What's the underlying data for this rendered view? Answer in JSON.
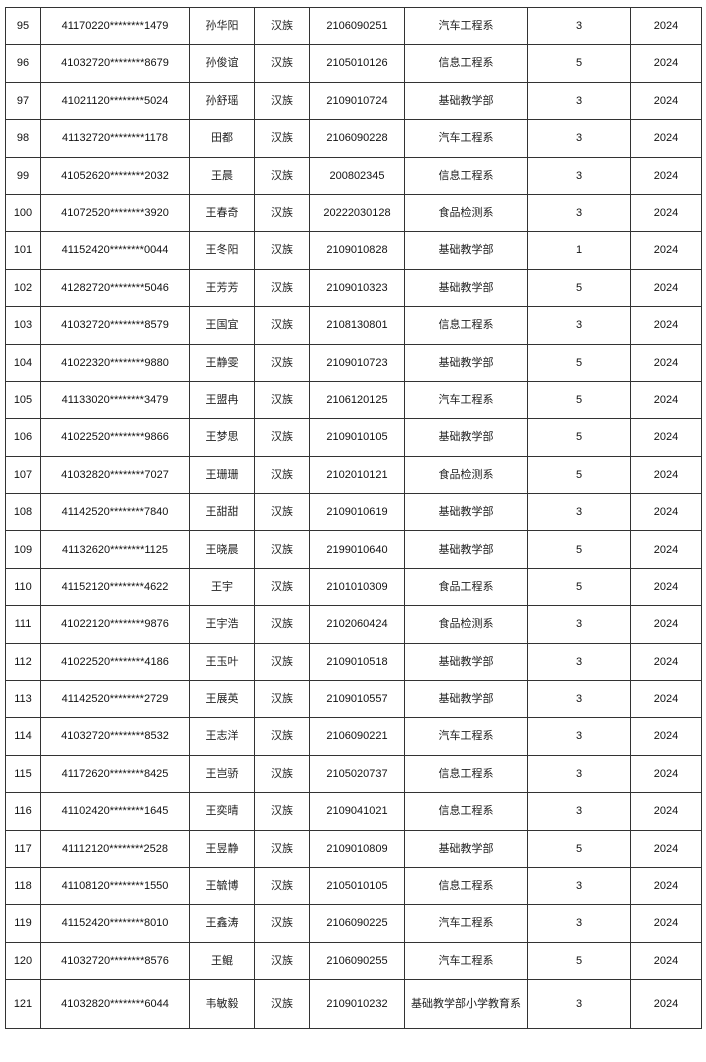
{
  "rows": [
    {
      "no": "95",
      "id": "41170220********1479",
      "name": "孙华阳",
      "ethnicity": "汉族",
      "student_no": "2106090251",
      "dept": "汽车工程系",
      "value": "3",
      "year": "2024"
    },
    {
      "no": "96",
      "id": "41032720********8679",
      "name": "孙俊谊",
      "ethnicity": "汉族",
      "student_no": "2105010126",
      "dept": "信息工程系",
      "value": "5",
      "year": "2024"
    },
    {
      "no": "97",
      "id": "41021120********5024",
      "name": "孙舒瑶",
      "ethnicity": "汉族",
      "student_no": "2109010724",
      "dept": "基础教学部",
      "value": "3",
      "year": "2024"
    },
    {
      "no": "98",
      "id": "41132720********1178",
      "name": "田都",
      "ethnicity": "汉族",
      "student_no": "2106090228",
      "dept": "汽车工程系",
      "value": "3",
      "year": "2024"
    },
    {
      "no": "99",
      "id": "41052620********2032",
      "name": "王晨",
      "ethnicity": "汉族",
      "student_no": "200802345",
      "dept": "信息工程系",
      "value": "3",
      "year": "2024"
    },
    {
      "no": "100",
      "id": "41072520********3920",
      "name": "王春奇",
      "ethnicity": "汉族",
      "student_no": "20222030128",
      "dept": "食品检测系",
      "value": "3",
      "year": "2024"
    },
    {
      "no": "101",
      "id": "41152420********0044",
      "name": "王冬阳",
      "ethnicity": "汉族",
      "student_no": "2109010828",
      "dept": "基础教学部",
      "value": "1",
      "year": "2024"
    },
    {
      "no": "102",
      "id": "41282720********5046",
      "name": "王芳芳",
      "ethnicity": "汉族",
      "student_no": "2109010323",
      "dept": "基础教学部",
      "value": "5",
      "year": "2024"
    },
    {
      "no": "103",
      "id": "41032720********8579",
      "name": "王国宜",
      "ethnicity": "汉族",
      "student_no": "2108130801",
      "dept": "信息工程系",
      "value": "3",
      "year": "2024"
    },
    {
      "no": "104",
      "id": "41022320********9880",
      "name": "王静雯",
      "ethnicity": "汉族",
      "student_no": "2109010723",
      "dept": "基础教学部",
      "value": "5",
      "year": "2024"
    },
    {
      "no": "105",
      "id": "41133020********3479",
      "name": "王盟冉",
      "ethnicity": "汉族",
      "student_no": "2106120125",
      "dept": "汽车工程系",
      "value": "5",
      "year": "2024"
    },
    {
      "no": "106",
      "id": "41022520********9866",
      "name": "王梦思",
      "ethnicity": "汉族",
      "student_no": "2109010105",
      "dept": "基础教学部",
      "value": "5",
      "year": "2024"
    },
    {
      "no": "107",
      "id": "41032820********7027",
      "name": "王珊珊",
      "ethnicity": "汉族",
      "student_no": "2102010121",
      "dept": "食品检测系",
      "value": "5",
      "year": "2024"
    },
    {
      "no": "108",
      "id": "41142520********7840",
      "name": "王甜甜",
      "ethnicity": "汉族",
      "student_no": "2109010619",
      "dept": "基础教学部",
      "value": "3",
      "year": "2024"
    },
    {
      "no": "109",
      "id": "41132620********1125",
      "name": "王晓晨",
      "ethnicity": "汉族",
      "student_no": "2199010640",
      "dept": "基础教学部",
      "value": "5",
      "year": "2024"
    },
    {
      "no": "110",
      "id": "41152120********4622",
      "name": "王宇",
      "ethnicity": "汉族",
      "student_no": "2101010309",
      "dept": "食品工程系",
      "value": "5",
      "year": "2024"
    },
    {
      "no": "111",
      "id": "41022120********9876",
      "name": "王宇浩",
      "ethnicity": "汉族",
      "student_no": "2102060424",
      "dept": "食品检测系",
      "value": "3",
      "year": "2024"
    },
    {
      "no": "112",
      "id": "41022520********4186",
      "name": "王玉叶",
      "ethnicity": "汉族",
      "student_no": "2109010518",
      "dept": "基础教学部",
      "value": "3",
      "year": "2024"
    },
    {
      "no": "113",
      "id": "41142520********2729",
      "name": "王展英",
      "ethnicity": "汉族",
      "student_no": "2109010557",
      "dept": "基础教学部",
      "value": "3",
      "year": "2024"
    },
    {
      "no": "114",
      "id": "41032720********8532",
      "name": "王志洋",
      "ethnicity": "汉族",
      "student_no": "2106090221",
      "dept": "汽车工程系",
      "value": "3",
      "year": "2024"
    },
    {
      "no": "115",
      "id": "41172620********8425",
      "name": "王岂骄",
      "ethnicity": "汉族",
      "student_no": "2105020737",
      "dept": "信息工程系",
      "value": "3",
      "year": "2024"
    },
    {
      "no": "116",
      "id": "41102420********1645",
      "name": "王奕晴",
      "ethnicity": "汉族",
      "student_no": "2109041021",
      "dept": "信息工程系",
      "value": "3",
      "year": "2024"
    },
    {
      "no": "117",
      "id": "41112120********2528",
      "name": "王昱静",
      "ethnicity": "汉族",
      "student_no": "2109010809",
      "dept": "基础教学部",
      "value": "5",
      "year": "2024"
    },
    {
      "no": "118",
      "id": "41108120********1550",
      "name": "王毓博",
      "ethnicity": "汉族",
      "student_no": "2105010105",
      "dept": "信息工程系",
      "value": "3",
      "year": "2024"
    },
    {
      "no": "119",
      "id": "41152420********8010",
      "name": "王鑫涛",
      "ethnicity": "汉族",
      "student_no": "2106090225",
      "dept": "汽车工程系",
      "value": "3",
      "year": "2024"
    },
    {
      "no": "120",
      "id": "41032720********8576",
      "name": "王鲲",
      "ethnicity": "汉族",
      "student_no": "2106090255",
      "dept": "汽车工程系",
      "value": "5",
      "year": "2024"
    },
    {
      "no": "121",
      "id": "41032820********6044",
      "name": "韦敏毅",
      "ethnicity": "汉族",
      "student_no": "2109010232",
      "dept": "基础教学部小学教育系",
      "value": "3",
      "year": "2024"
    }
  ]
}
